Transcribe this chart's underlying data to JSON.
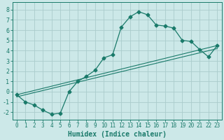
{
  "xlabel": "Humidex (Indice chaleur)",
  "background_color": "#cce8e8",
  "grid_color": "#aacccc",
  "line_color": "#1a7a6a",
  "xlim": [
    -0.5,
    23.5
  ],
  "ylim": [
    -2.7,
    8.7
  ],
  "xticks": [
    0,
    1,
    2,
    3,
    4,
    5,
    6,
    7,
    8,
    9,
    10,
    11,
    12,
    13,
    14,
    15,
    16,
    17,
    18,
    19,
    20,
    21,
    22,
    23
  ],
  "yticks": [
    -2,
    -1,
    0,
    1,
    2,
    3,
    4,
    5,
    6,
    7,
    8
  ],
  "line1_x": [
    0,
    1,
    2,
    3,
    4,
    5,
    6,
    7,
    8,
    9,
    10,
    11,
    12,
    13,
    14,
    15,
    16,
    17,
    18,
    19,
    20,
    21,
    22,
    23
  ],
  "line1_y": [
    -0.3,
    -1.0,
    -1.3,
    -1.8,
    -2.2,
    -2.1,
    0.0,
    1.0,
    1.5,
    2.1,
    3.3,
    3.6,
    6.3,
    7.3,
    7.8,
    7.5,
    6.5,
    6.4,
    6.2,
    5.0,
    4.9,
    4.1,
    3.4,
    4.5
  ],
  "line2_x": [
    0,
    23
  ],
  "line2_y": [
    -0.3,
    4.5
  ],
  "line3_y_start": -0.5,
  "line3_y_end": 4.2,
  "marker_style": "D",
  "marker_size": 2.5,
  "xlabel_fontsize": 7,
  "tick_fontsize": 5.5
}
